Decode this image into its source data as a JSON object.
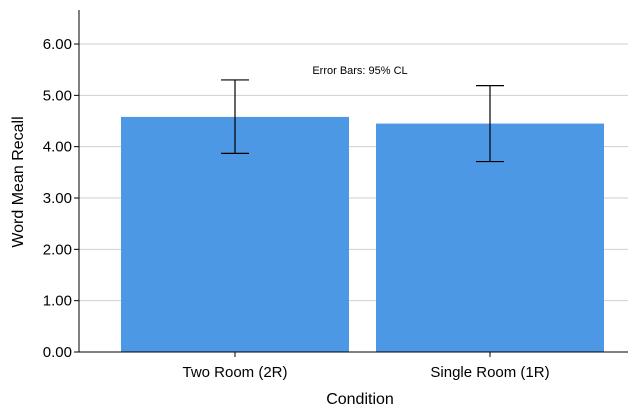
{
  "chart_data": {
    "type": "bar",
    "categories": [
      "Two Room (2R)",
      "Single Room (1R)"
    ],
    "values": [
      4.58,
      4.45
    ],
    "error_low": [
      3.87,
      3.71
    ],
    "error_high": [
      5.3,
      5.19
    ],
    "yticks": [
      "0.00",
      "1.00",
      "2.00",
      "3.00",
      "4.00",
      "5.00",
      "6.00"
    ],
    "ylim": [
      0,
      6.6
    ],
    "xlabel": "Condition",
    "ylabel": "Word Mean Recall",
    "annotation": "Error Bars: 95% CL",
    "grid": true,
    "bar_color": "#4C98E4"
  }
}
